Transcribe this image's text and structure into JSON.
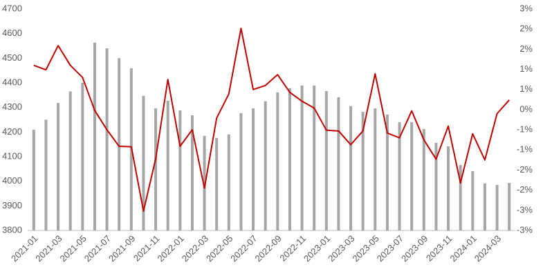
{
  "chart_data": {
    "type": "bar",
    "categories": [
      "2021-01",
      null,
      "2021-03",
      null,
      "2021-05",
      null,
      "2021-07",
      null,
      "2021-09",
      null,
      "2021-11",
      null,
      "2022-01",
      null,
      "2022-03",
      null,
      "2022-05",
      null,
      "2022-07",
      null,
      "2022-09",
      null,
      "2022-11",
      null,
      "2023-01",
      null,
      "2023-03",
      null,
      "2023-05",
      null,
      "2023-07",
      null,
      "2023-09",
      null,
      "2023-11",
      null,
      "2024-01",
      null,
      "2024-03",
      null
    ],
    "series": [
      {
        "type": "bar",
        "color": "#a6a6a6",
        "values": [
          4209,
          4250,
          4318,
          4365,
          4400,
          4563,
          4540,
          4500,
          4459,
          4347,
          4296,
          4327,
          4288,
          4268,
          4184,
          4176,
          4190,
          4277,
          4296,
          4325,
          4361,
          4378,
          4389,
          4389,
          4366,
          4341,
          4305,
          4282,
          4296,
          4271,
          4240,
          4240,
          4212,
          4156,
          4142,
          4066,
          4041,
          3991,
          3985,
          3993
        ]
      },
      {
        "type": "line",
        "axis": "y2",
        "color": "#c00000",
        "values": [
          1.1,
          0.99,
          1.59,
          1.1,
          0.8,
          -0.02,
          -0.5,
          -0.91,
          -0.92,
          -2.52,
          -1.22,
          0.75,
          -0.91,
          -0.5,
          -1.95,
          -0.21,
          0.39,
          2.02,
          0.5,
          0.6,
          0.87,
          0.43,
          0.21,
          0.04,
          -0.51,
          -0.53,
          -0.87,
          -0.53,
          0.89,
          -0.58,
          -0.7,
          -0.03,
          -0.75,
          -1.23,
          -0.41,
          -1.82,
          -0.6,
          -1.25,
          -0.1,
          0.24
        ]
      }
    ],
    "ylim": [
      3800,
      4700
    ],
    "yticks": [
      3800,
      3900,
      4000,
      4100,
      4200,
      4300,
      4400,
      4500,
      4600,
      4700
    ],
    "y2lim": [
      -3,
      2.5
    ],
    "y2ticks": [
      {
        "value": -3,
        "label": "-3%"
      },
      {
        "value": -2.5,
        "label": "-3%"
      },
      {
        "value": -2,
        "label": "-2%"
      },
      {
        "value": -1.5,
        "label": "-2%"
      },
      {
        "value": -1,
        "label": "-1%"
      },
      {
        "value": -0.5,
        "label": "-1%"
      },
      {
        "value": 0,
        "label": "0%"
      },
      {
        "value": 0.5,
        "label": "1%"
      },
      {
        "value": 1,
        "label": "1%"
      },
      {
        "value": 1.5,
        "label": "2%"
      },
      {
        "value": 2,
        "label": "2%"
      },
      {
        "value": 2.5,
        "label": "3%"
      }
    ],
    "grid": false
  }
}
